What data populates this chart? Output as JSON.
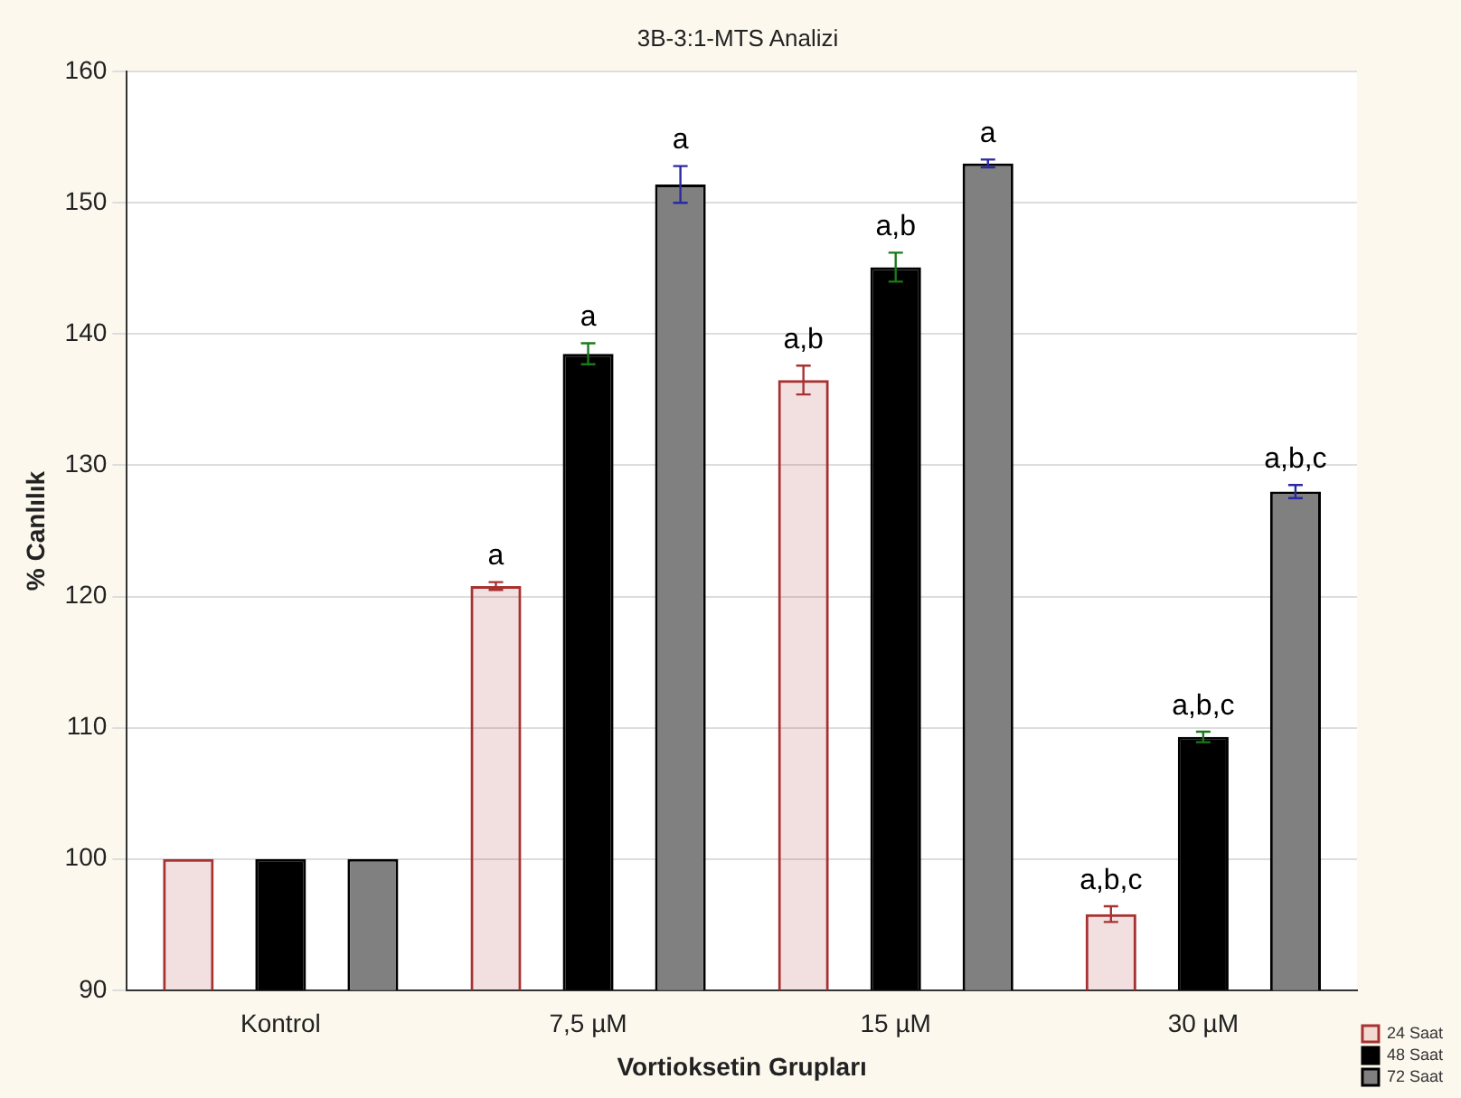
{
  "chart_data": {
    "type": "bar",
    "title": "3B-3:1-MTS Analizi",
    "xlabel": "Vortioksetin Grupları",
    "ylabel": "% Canlılık",
    "categories": [
      "Kontrol",
      "7,5 µM",
      "15 µM",
      "30 µM"
    ],
    "series": [
      {
        "name": "24 Saat",
        "color": "#a83232",
        "values": [
          100,
          120.8,
          136.5,
          95.8
        ],
        "errors": [
          null,
          0.3,
          1.1,
          0.6
        ],
        "value_labels": [
          null,
          "a",
          "a,b",
          "a,b,c"
        ]
      },
      {
        "name": "48 Saat",
        "color": "#000000",
        "values": [
          100,
          138.5,
          145.1,
          109.3
        ],
        "errors": [
          null,
          0.8,
          1.1,
          0.4
        ],
        "value_labels": [
          null,
          "a",
          "a,b",
          "a,b,c"
        ]
      },
      {
        "name": "72 Saat",
        "color": "#808080",
        "values": [
          100,
          151.4,
          153.0,
          128.0
        ],
        "errors": [
          null,
          1.4,
          0.3,
          0.5
        ],
        "value_labels": [
          null,
          "a",
          "a",
          "a,b,c"
        ]
      }
    ],
    "ylim": [
      90,
      160
    ],
    "yticks": [
      90,
      100,
      110,
      120,
      130,
      140,
      150,
      160
    ],
    "grid": "y",
    "legend": "bottom right"
  }
}
